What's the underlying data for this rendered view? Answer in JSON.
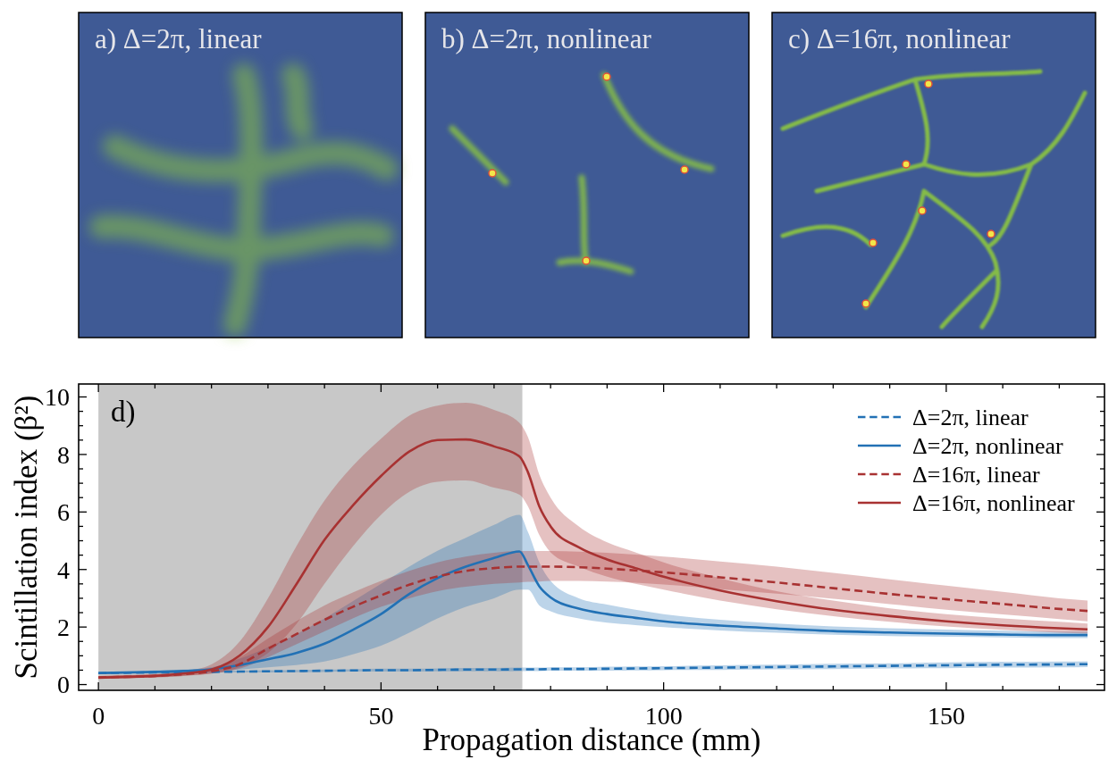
{
  "chart_data": [
    {
      "type": "other",
      "title": "a) Δ=2π, linear"
    },
    {
      "type": "other",
      "title": "b) Δ=2π, nonlinear"
    },
    {
      "type": "other",
      "title": "c) Δ=16π, nonlinear"
    },
    {
      "type": "line",
      "title": "d)",
      "xlabel": "Propagation distance (mm)",
      "ylabel": "Scintillation index (β²)",
      "x": [
        0,
        5,
        10,
        15,
        20,
        25,
        30,
        35,
        40,
        45,
        50,
        55,
        60,
        65,
        70,
        74.5,
        76,
        78,
        80,
        85,
        90,
        95,
        100,
        110,
        120,
        130,
        140,
        150,
        160,
        170,
        175
      ],
      "series": [
        {
          "name": "Δ=2π, linear",
          "color": "#2271b5",
          "line_style": "dashed",
          "values": [
            0.4,
            0.41,
            0.42,
            0.43,
            0.44,
            0.45,
            0.46,
            0.47,
            0.48,
            0.49,
            0.5,
            0.5,
            0.51,
            0.52,
            0.52,
            0.53,
            0.53,
            0.53,
            0.54,
            0.54,
            0.55,
            0.56,
            0.57,
            0.59,
            0.61,
            0.63,
            0.65,
            0.67,
            0.69,
            0.7,
            0.71
          ],
          "lower": [
            0.37,
            0.38,
            0.39,
            0.4,
            0.41,
            0.42,
            0.42,
            0.43,
            0.44,
            0.45,
            0.45,
            0.45,
            0.46,
            0.46,
            0.46,
            0.47,
            0.47,
            0.47,
            0.48,
            0.48,
            0.48,
            0.49,
            0.5,
            0.51,
            0.53,
            0.54,
            0.56,
            0.57,
            0.59,
            0.6,
            0.61
          ],
          "upper": [
            0.43,
            0.44,
            0.45,
            0.46,
            0.47,
            0.48,
            0.5,
            0.51,
            0.52,
            0.53,
            0.55,
            0.55,
            0.56,
            0.58,
            0.58,
            0.59,
            0.59,
            0.59,
            0.6,
            0.6,
            0.62,
            0.63,
            0.64,
            0.67,
            0.69,
            0.72,
            0.74,
            0.77,
            0.79,
            0.8,
            0.81
          ]
        },
        {
          "name": "Δ=2π, nonlinear",
          "color": "#2271b5",
          "line_style": "solid",
          "values": [
            0.4,
            0.42,
            0.44,
            0.47,
            0.53,
            0.68,
            0.88,
            1.1,
            1.42,
            1.9,
            2.45,
            3.15,
            3.7,
            4.1,
            4.4,
            4.63,
            4.15,
            3.42,
            3.03,
            2.64,
            2.45,
            2.32,
            2.2,
            2.05,
            1.95,
            1.86,
            1.81,
            1.77,
            1.74,
            1.72,
            1.72
          ],
          "lower": [
            0.36,
            0.38,
            0.4,
            0.43,
            0.47,
            0.52,
            0.6,
            0.68,
            0.8,
            1.05,
            1.35,
            1.8,
            2.3,
            2.7,
            3.0,
            3.3,
            3.3,
            2.75,
            2.55,
            2.3,
            2.15,
            2.07,
            2.0,
            1.88,
            1.8,
            1.73,
            1.69,
            1.66,
            1.64,
            1.62,
            1.62
          ],
          "upper": [
            0.44,
            0.46,
            0.49,
            0.52,
            0.6,
            0.9,
            1.3,
            1.75,
            2.3,
            2.9,
            3.5,
            4.1,
            4.65,
            5.1,
            5.55,
            5.9,
            5.3,
            4.25,
            3.6,
            3.0,
            2.78,
            2.6,
            2.45,
            2.25,
            2.12,
            2.02,
            1.96,
            1.91,
            1.87,
            1.84,
            1.84
          ]
        },
        {
          "name": "Δ=16π, linear",
          "color": "#a83232",
          "line_style": "dashed",
          "values": [
            0.25,
            0.27,
            0.3,
            0.36,
            0.46,
            0.71,
            1.25,
            1.75,
            2.25,
            2.7,
            3.1,
            3.47,
            3.76,
            3.95,
            4.05,
            4.1,
            4.1,
            4.1,
            4.1,
            4.08,
            4.03,
            3.97,
            3.9,
            3.73,
            3.55,
            3.35,
            3.15,
            2.97,
            2.8,
            2.63,
            2.56
          ],
          "lower": [
            0.2,
            0.22,
            0.25,
            0.3,
            0.38,
            0.55,
            0.95,
            1.4,
            1.85,
            2.3,
            2.7,
            3.0,
            3.25,
            3.4,
            3.5,
            3.55,
            3.57,
            3.58,
            3.6,
            3.6,
            3.58,
            3.54,
            3.48,
            3.32,
            3.16,
            2.98,
            2.8,
            2.6,
            2.44,
            2.28,
            2.2
          ],
          "upper": [
            0.3,
            0.32,
            0.35,
            0.42,
            0.55,
            0.95,
            1.6,
            2.2,
            2.75,
            3.2,
            3.6,
            3.95,
            4.25,
            4.45,
            4.58,
            4.64,
            4.64,
            4.64,
            4.64,
            4.62,
            4.58,
            4.52,
            4.45,
            4.28,
            4.1,
            3.88,
            3.66,
            3.44,
            3.22,
            3.0,
            2.92
          ]
        },
        {
          "name": "Δ=16π, nonlinear",
          "color": "#a83232",
          "line_style": "solid",
          "values": [
            0.24,
            0.27,
            0.3,
            0.38,
            0.52,
            1.01,
            2.0,
            3.48,
            5.03,
            6.22,
            7.25,
            8.1,
            8.5,
            8.52,
            8.28,
            7.93,
            7.38,
            6.2,
            5.5,
            4.77,
            4.35,
            4.05,
            3.75,
            3.27,
            2.9,
            2.6,
            2.38,
            2.2,
            2.06,
            1.96,
            1.92
          ],
          "lower": [
            0.2,
            0.22,
            0.25,
            0.3,
            0.38,
            0.6,
            1.1,
            2.1,
            3.5,
            4.8,
            5.9,
            6.7,
            7.05,
            7.1,
            6.85,
            6.6,
            6.2,
            5.2,
            4.6,
            4.1,
            3.75,
            3.5,
            3.3,
            2.92,
            2.62,
            2.38,
            2.18,
            2.02,
            1.9,
            1.8,
            1.77
          ],
          "upper": [
            0.3,
            0.33,
            0.37,
            0.46,
            0.7,
            1.5,
            3.0,
            4.8,
            6.4,
            7.6,
            8.55,
            9.35,
            9.7,
            9.8,
            9.55,
            9.1,
            8.6,
            7.3,
            6.5,
            5.5,
            4.95,
            4.6,
            4.25,
            3.7,
            3.25,
            2.92,
            2.65,
            2.45,
            2.3,
            2.18,
            2.12
          ]
        }
      ],
      "bands": [
        {
          "axis": "x",
          "from": 0,
          "to": 75,
          "color": "#c8c8c8"
        }
      ],
      "xlim": [
        -3.5,
        178
      ],
      "ylim": [
        -0.2,
        10.45
      ],
      "xticks": [
        0,
        {
          "value": 10,
          "label": null
        },
        {
          "value": 20,
          "label": null
        },
        {
          "value": 30,
          "label": null
        },
        {
          "value": 40,
          "label": null
        },
        50,
        {
          "value": 60,
          "label": null
        },
        {
          "value": 70,
          "label": null
        },
        {
          "value": 80,
          "label": null
        },
        {
          "value": 90,
          "label": null
        },
        100,
        {
          "value": 110,
          "label": null
        },
        {
          "value": 120,
          "label": null
        },
        {
          "value": 130,
          "label": null
        },
        {
          "value": 140,
          "label": null
        },
        150,
        {
          "value": 160,
          "label": null
        },
        {
          "value": 170,
          "label": null
        }
      ],
      "yticks": [
        0,
        {
          "value": 0.5,
          "label": null
        },
        {
          "value": 1,
          "label": null
        },
        {
          "value": 1.5,
          "label": null
        },
        2,
        {
          "value": 2.5,
          "label": null
        },
        {
          "value": 3,
          "label": null
        },
        {
          "value": 3.5,
          "label": null
        },
        4,
        {
          "value": 4.5,
          "label": null
        },
        {
          "value": 5,
          "label": null
        },
        {
          "value": 5.5,
          "label": null
        },
        6,
        {
          "value": 6.5,
          "label": null
        },
        {
          "value": 7,
          "label": null
        },
        {
          "value": 7.5,
          "label": null
        },
        8,
        {
          "value": 8.5,
          "label": null
        },
        {
          "value": 9,
          "label": null
        },
        {
          "value": 9.5,
          "label": null
        },
        10
      ],
      "grid": false,
      "legend": "top right"
    }
  ]
}
